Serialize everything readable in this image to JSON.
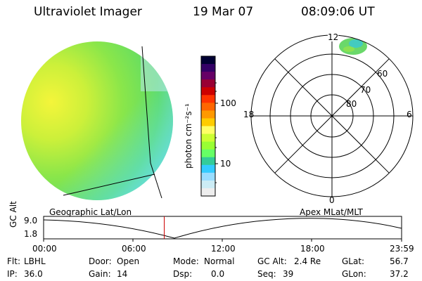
{
  "header": {
    "instrument": "Ultraviolet Imager",
    "date": "19 Mar 07",
    "time": "08:09:06 UT"
  },
  "colorbar": {
    "unit_label": "photon cm⁻²s⁻¹",
    "tick_100": "100",
    "tick_10": "10",
    "colors": [
      "#000033",
      "#330066",
      "#660066",
      "#990033",
      "#cc0000",
      "#ff3300",
      "#ff6600",
      "#ff9900",
      "#ffcc00",
      "#ffff66",
      "#ccff33",
      "#99ff33",
      "#66ff66",
      "#33cc99",
      "#33ccff",
      "#99ddff",
      "#ccecf5",
      "#eeeeee"
    ]
  },
  "polar_plot": {
    "mlt_top": "12",
    "mlt_bottom": "0",
    "mlt_left": "18",
    "mlt_right": "6",
    "lat_60": "60",
    "lat_70": "70",
    "lat_80": "80"
  },
  "orbit_panel": {
    "left_title": "Geographic Lat/Lon",
    "right_title": "Apex  MLat/MLT",
    "y_label": "GC Alt",
    "y_max": "9.0",
    "y_min": "1.8",
    "x_ticks": [
      "00:00",
      "06:00",
      "12:00",
      "18:00",
      "23:59"
    ],
    "current_time_fraction": 0.337
  },
  "info": {
    "flt_label": "Flt:",
    "flt_value": "LBHL",
    "ip_label": "IP:",
    "ip_value": "36.0",
    "door_label": "Door:",
    "door_value": "Open",
    "gain_label": "Gain:",
    "gain_value": "14",
    "mode_label": "Mode:",
    "mode_value": "Normal",
    "dsp_label": "Dsp:",
    "dsp_value": "0.0",
    "gcalt_label": "GC Alt:",
    "gcalt_value": "2.4 Re",
    "seq_label": "Seq:",
    "seq_value": "39",
    "glat_label": "GLat:",
    "glat_value": "56.7",
    "glon_label": "GLon:",
    "glon_value": "37.2"
  }
}
